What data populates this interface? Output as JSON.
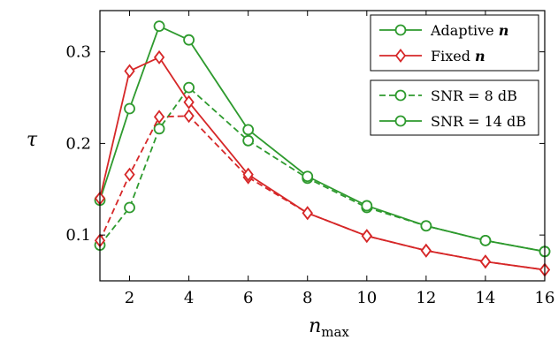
{
  "chart_data": {
    "type": "line",
    "xlabel": "n",
    "xlabel_sub": "max",
    "ylabel": "τ",
    "xlim": [
      1,
      16
    ],
    "ylim": [
      0.05,
      0.345
    ],
    "x_ticks": [
      2,
      4,
      6,
      8,
      10,
      12,
      14,
      16
    ],
    "x_tick_labels": [
      "2",
      "4",
      "6",
      "8",
      "10",
      "12",
      "14",
      "16"
    ],
    "y_ticks": [
      0.1,
      0.2,
      0.3
    ],
    "y_tick_labels": [
      "0.1",
      "0.2",
      "0.3"
    ],
    "grid": false,
    "series": [
      {
        "name": "Adaptive n, SNR = 14 dB",
        "color": "#2e9a2e",
        "marker": "circle",
        "dash": "solid",
        "x": [
          1,
          2,
          3,
          4,
          6,
          8,
          10,
          12,
          14,
          16
        ],
        "y": [
          0.138,
          0.238,
          0.328,
          0.313,
          0.215,
          0.164,
          0.132,
          0.11,
          0.094,
          0.082
        ]
      },
      {
        "name": "Fixed n, SNR = 14 dB",
        "color": "#d62728",
        "marker": "diamond",
        "dash": "solid",
        "x": [
          1,
          2,
          3,
          4,
          6,
          8,
          10,
          12,
          14,
          16
        ],
        "y": [
          0.14,
          0.279,
          0.294,
          0.245,
          0.166,
          0.124,
          0.099,
          0.083,
          0.071,
          0.062
        ]
      },
      {
        "name": "Adaptive n, SNR = 8 dB",
        "color": "#2e9a2e",
        "marker": "circle",
        "dash": "dashed",
        "x": [
          1,
          2,
          3,
          4,
          6,
          8,
          10,
          12,
          14,
          16
        ],
        "y": [
          0.089,
          0.13,
          0.216,
          0.261,
          0.203,
          0.162,
          0.13,
          0.11,
          0.094,
          0.082
        ]
      },
      {
        "name": "Fixed n, SNR = 8 dB",
        "color": "#d62728",
        "marker": "diamond",
        "dash": "dashed",
        "x": [
          1,
          2,
          3,
          4,
          6,
          8,
          10,
          12,
          14,
          16
        ],
        "y": [
          0.094,
          0.166,
          0.229,
          0.23,
          0.163,
          0.124,
          0.099,
          0.083,
          0.071,
          0.062
        ]
      }
    ],
    "legends": [
      {
        "placement": "top-right",
        "entries": [
          {
            "label": "Adaptive",
            "label_italic": "n",
            "color": "#2e9a2e",
            "marker": "circle",
            "dash": "solid"
          },
          {
            "label": "Fixed",
            "label_italic": "n",
            "color": "#d62728",
            "marker": "diamond",
            "dash": "solid"
          }
        ]
      },
      {
        "placement": "right",
        "entries": [
          {
            "label": "SNR = 8 dB",
            "label_italic": "",
            "color": "#2e9a2e",
            "marker": "circle",
            "dash": "dashed"
          },
          {
            "label": "SNR = 14 dB",
            "label_italic": "",
            "color": "#2e9a2e",
            "marker": "circle",
            "dash": "solid"
          }
        ]
      }
    ]
  }
}
